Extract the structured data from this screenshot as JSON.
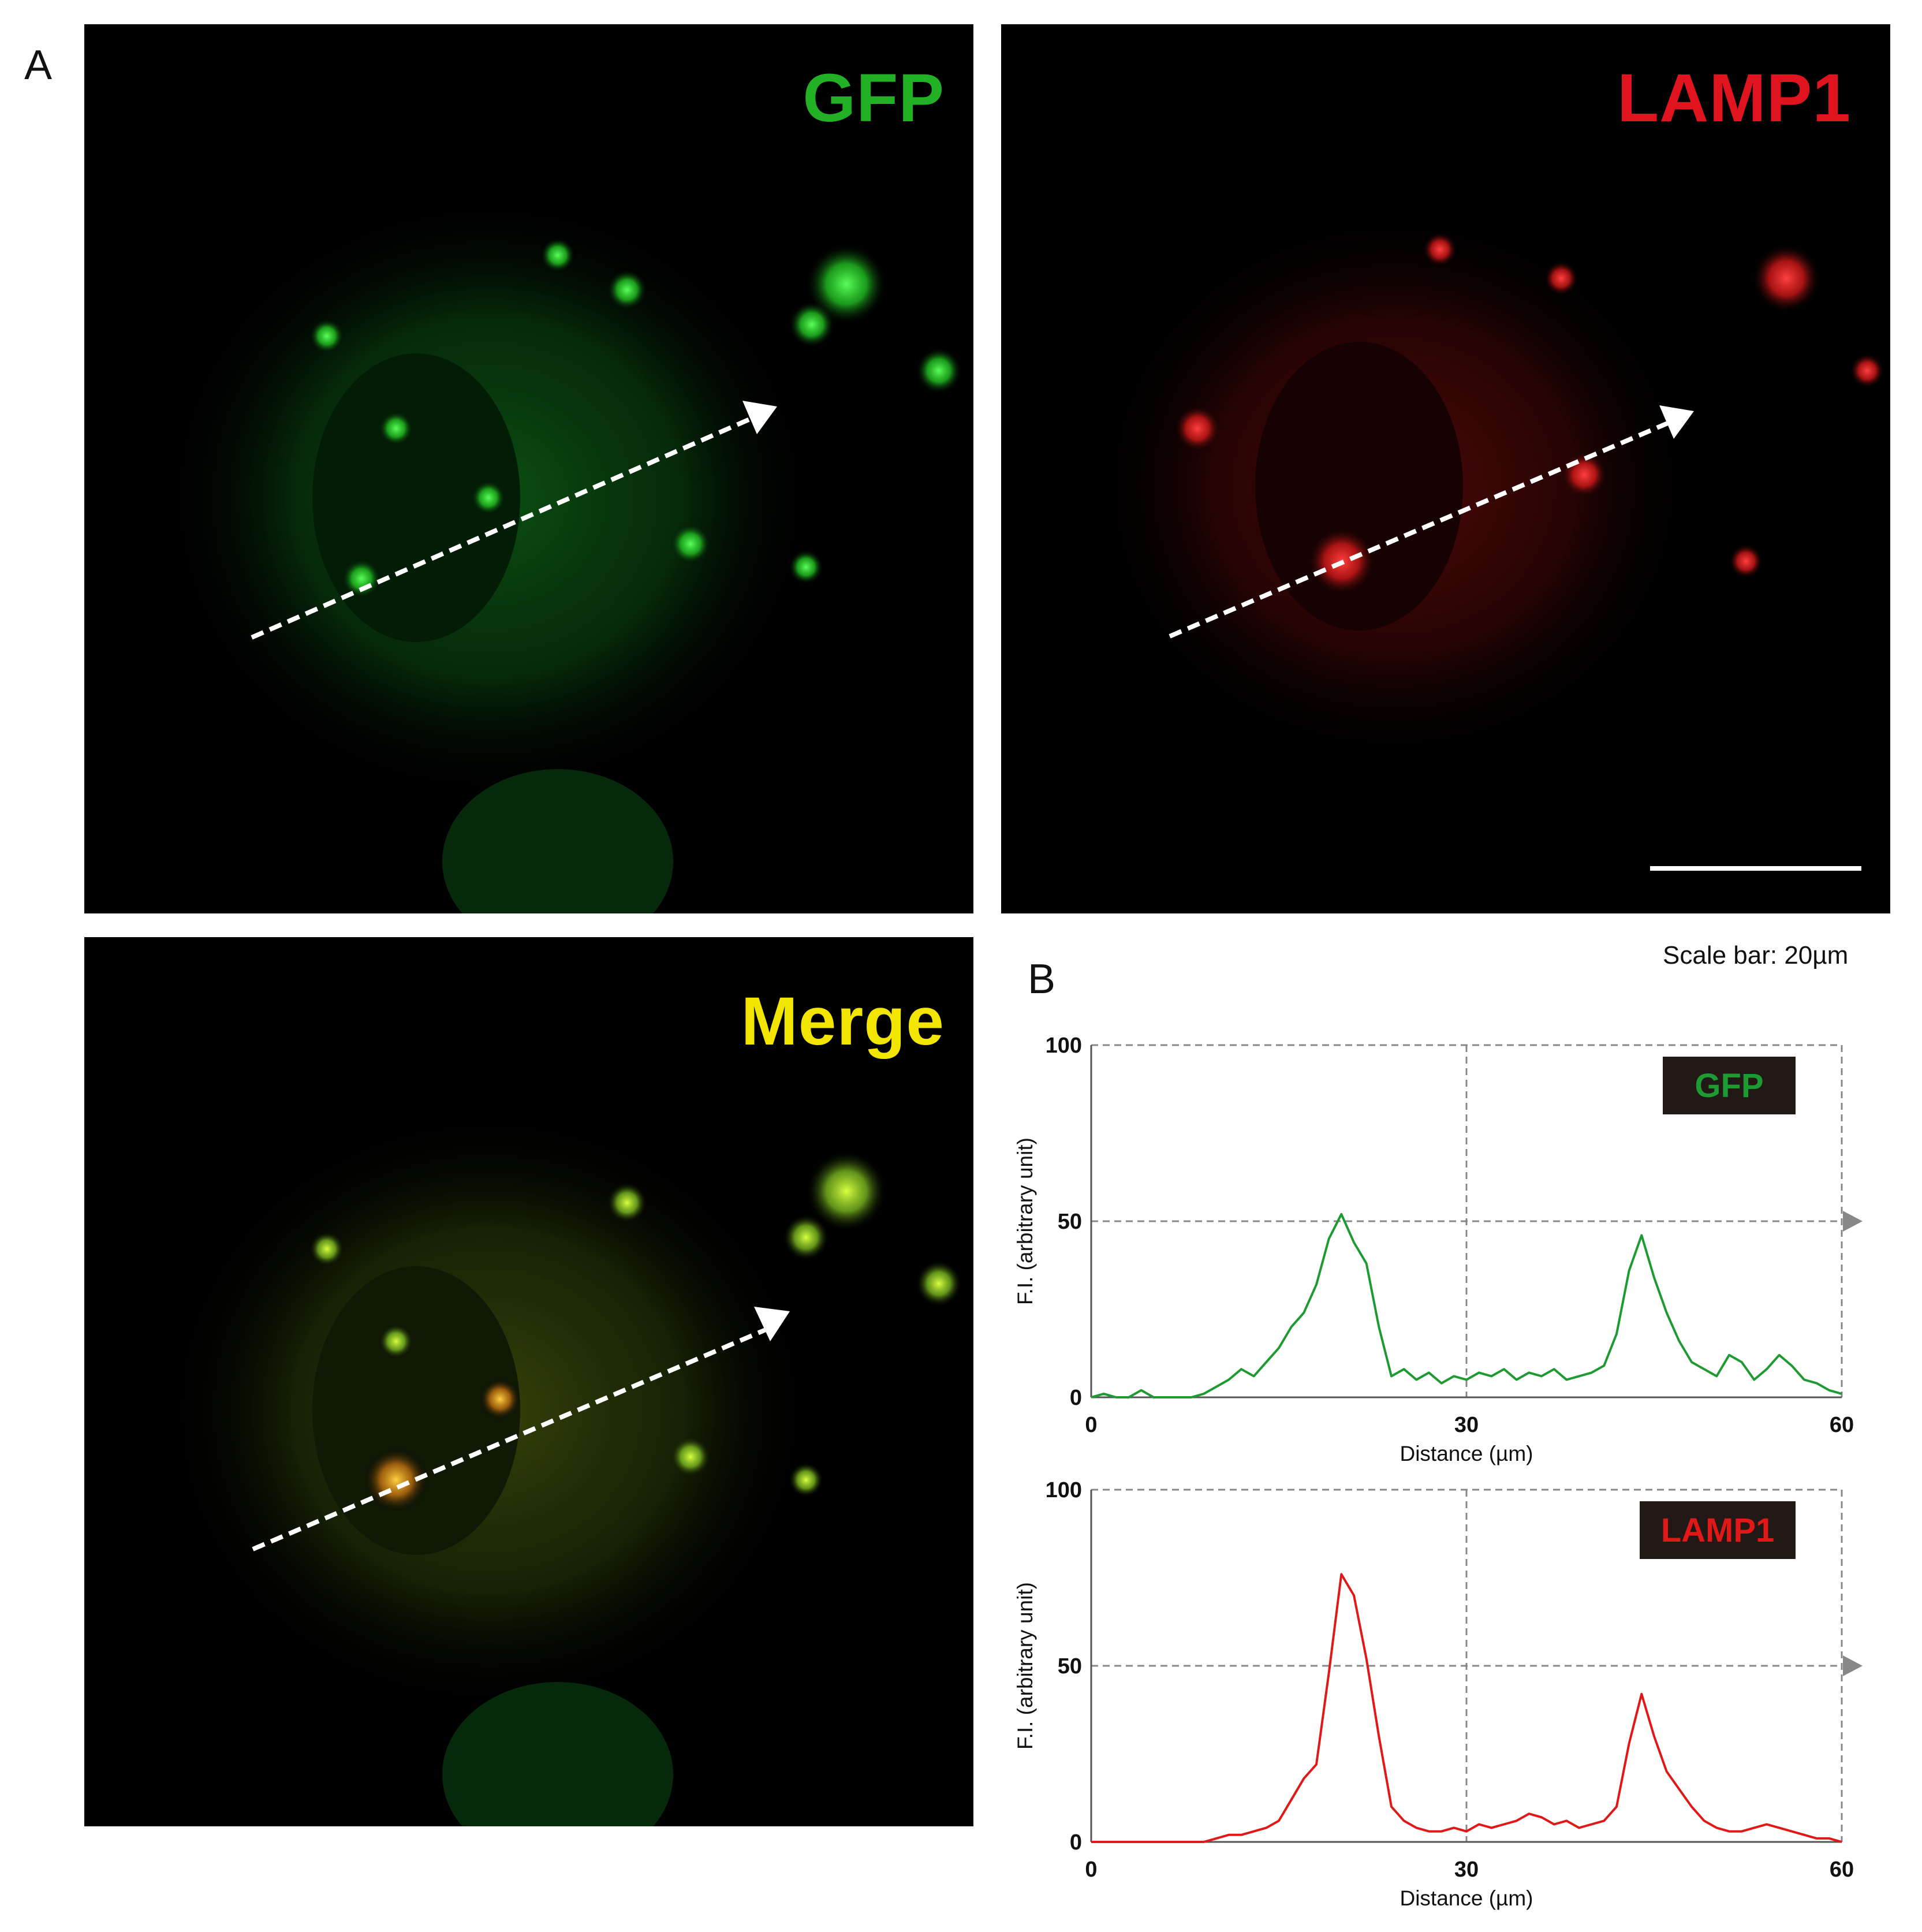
{
  "panel_a_letter": "A",
  "panel_b_letter": "B",
  "images": [
    {
      "label": "GFP",
      "label_color": "#22b024"
    },
    {
      "label": "LAMP1",
      "label_color": "#e0141e"
    },
    {
      "label": "Merge",
      "label_color": "#f2e600"
    }
  ],
  "scale_bar_text": "Scale bar: 20µm",
  "chart_data": [
    {
      "type": "line",
      "legend": "GFP",
      "color": "#1e9a32",
      "xlabel": "Distance (µm)",
      "ylabel": "F.I. (arbitrary unit)",
      "xlim": [
        0,
        60
      ],
      "ylim": [
        0,
        100
      ],
      "xticks": [
        "0",
        "30",
        "60"
      ],
      "yticks": [
        "0",
        "50",
        "100"
      ],
      "grid": true,
      "legend_position": "top-right",
      "x": [
        0,
        1,
        2,
        3,
        4,
        5,
        6,
        7,
        8,
        9,
        10,
        11,
        12,
        13,
        14,
        15,
        16,
        17,
        18,
        19,
        20,
        21,
        22,
        23,
        24,
        25,
        26,
        27,
        28,
        29,
        30,
        31,
        32,
        33,
        34,
        35,
        36,
        37,
        38,
        39,
        40,
        41,
        42,
        43,
        44,
        45,
        46,
        47,
        48,
        49,
        50,
        51,
        52,
        53,
        54,
        55,
        56,
        57,
        58,
        59,
        60
      ],
      "y": [
        0,
        1,
        0,
        0,
        2,
        0,
        0,
        0,
        0,
        1,
        3,
        5,
        8,
        6,
        10,
        14,
        20,
        24,
        32,
        45,
        52,
        44,
        38,
        20,
        6,
        8,
        5,
        7,
        4,
        6,
        5,
        7,
        6,
        8,
        5,
        7,
        6,
        8,
        5,
        6,
        7,
        9,
        18,
        36,
        46,
        34,
        24,
        16,
        10,
        8,
        6,
        12,
        10,
        5,
        8,
        12,
        9,
        5,
        4,
        2,
        1
      ]
    },
    {
      "type": "line",
      "legend": "LAMP1",
      "color": "#e01818",
      "xlabel": "Distance (µm)",
      "ylabel": "F.I. (arbitrary unit)",
      "xlim": [
        0,
        60
      ],
      "ylim": [
        0,
        100
      ],
      "xticks": [
        "0",
        "30",
        "60"
      ],
      "yticks": [
        "0",
        "50",
        "100"
      ],
      "grid": true,
      "legend_position": "top-right",
      "x": [
        0,
        1,
        2,
        3,
        4,
        5,
        6,
        7,
        8,
        9,
        10,
        11,
        12,
        13,
        14,
        15,
        16,
        17,
        18,
        19,
        20,
        21,
        22,
        23,
        24,
        25,
        26,
        27,
        28,
        29,
        30,
        31,
        32,
        33,
        34,
        35,
        36,
        37,
        38,
        39,
        40,
        41,
        42,
        43,
        44,
        45,
        46,
        47,
        48,
        49,
        50,
        51,
        52,
        53,
        54,
        55,
        56,
        57,
        58,
        59,
        60
      ],
      "y": [
        0,
        0,
        0,
        0,
        0,
        0,
        0,
        0,
        0,
        0,
        1,
        2,
        2,
        3,
        4,
        6,
        12,
        18,
        22,
        48,
        76,
        70,
        52,
        30,
        10,
        6,
        4,
        3,
        3,
        4,
        3,
        5,
        4,
        5,
        6,
        8,
        7,
        5,
        6,
        4,
        5,
        6,
        10,
        28,
        42,
        30,
        20,
        15,
        10,
        6,
        4,
        3,
        3,
        4,
        5,
        4,
        3,
        2,
        1,
        1,
        0
      ]
    }
  ]
}
